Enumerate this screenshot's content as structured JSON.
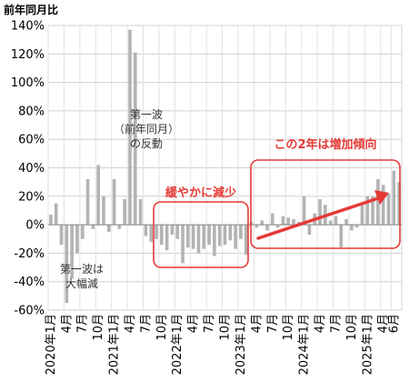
{
  "chart_data": {
    "type": "bar",
    "ylabel": "前年同月比",
    "ylim": [
      -60,
      140
    ],
    "yticks": [
      -60,
      -40,
      -20,
      0,
      20,
      40,
      60,
      80,
      100,
      120,
      140
    ],
    "ytick_labels": [
      "-60%",
      "-40%",
      "-20%",
      "0%",
      "20%",
      "40%",
      "60%",
      "80%",
      "100%",
      "120%",
      "140%"
    ],
    "grid": true,
    "bar_color": "#b3b3b3",
    "accent_color": "#e53935",
    "x_ticks": [
      {
        "label": "2020年1月",
        "index": 0
      },
      {
        "label": "4月",
        "index": 3
      },
      {
        "label": "7月",
        "index": 6
      },
      {
        "label": "10月",
        "index": 9
      },
      {
        "label": "2021年1月",
        "index": 12
      },
      {
        "label": "4月",
        "index": 15
      },
      {
        "label": "7月",
        "index": 18
      },
      {
        "label": "10月",
        "index": 21
      },
      {
        "label": "2022年1月",
        "index": 24
      },
      {
        "label": "4月",
        "index": 27
      },
      {
        "label": "7月",
        "index": 30
      },
      {
        "label": "10月",
        "index": 33
      },
      {
        "label": "2023年1月",
        "index": 36
      },
      {
        "label": "4月",
        "index": 39
      },
      {
        "label": "7月",
        "index": 42
      },
      {
        "label": "10月",
        "index": 45
      },
      {
        "label": "2024年1月",
        "index": 48
      },
      {
        "label": "4月",
        "index": 51
      },
      {
        "label": "7月",
        "index": 54
      },
      {
        "label": "10月",
        "index": 57
      },
      {
        "label": "2025年1月",
        "index": 60
      },
      {
        "label": "4月",
        "index": 63
      },
      {
        "label": "6月",
        "index": 65
      }
    ],
    "values": [
      7,
      15,
      -14,
      -55,
      -38,
      -20,
      -10,
      32,
      -3,
      42,
      20,
      -5,
      32,
      -3,
      18,
      137,
      121,
      18,
      -8,
      -12,
      -10,
      -14,
      -18,
      -7,
      -10,
      -27,
      -16,
      -17,
      -20,
      -17,
      -14,
      -22,
      -15,
      -14,
      -11,
      -17,
      -10,
      -21,
      2,
      -2,
      3,
      -4,
      8,
      -2,
      6,
      5,
      4,
      2,
      20,
      -7,
      8,
      18,
      14,
      3,
      6,
      -16,
      4,
      -4,
      -2,
      14,
      20,
      20,
      32,
      28,
      22,
      38,
      30
    ],
    "annotations": {
      "drop_label": [
        "第一波は",
        "大幅減"
      ],
      "rebound_label": [
        "第一波",
        "（前年同月）",
        "の反動"
      ],
      "slow_decline_label": "緩やかに減少",
      "increase_label": "この2年は増加傾向"
    }
  }
}
